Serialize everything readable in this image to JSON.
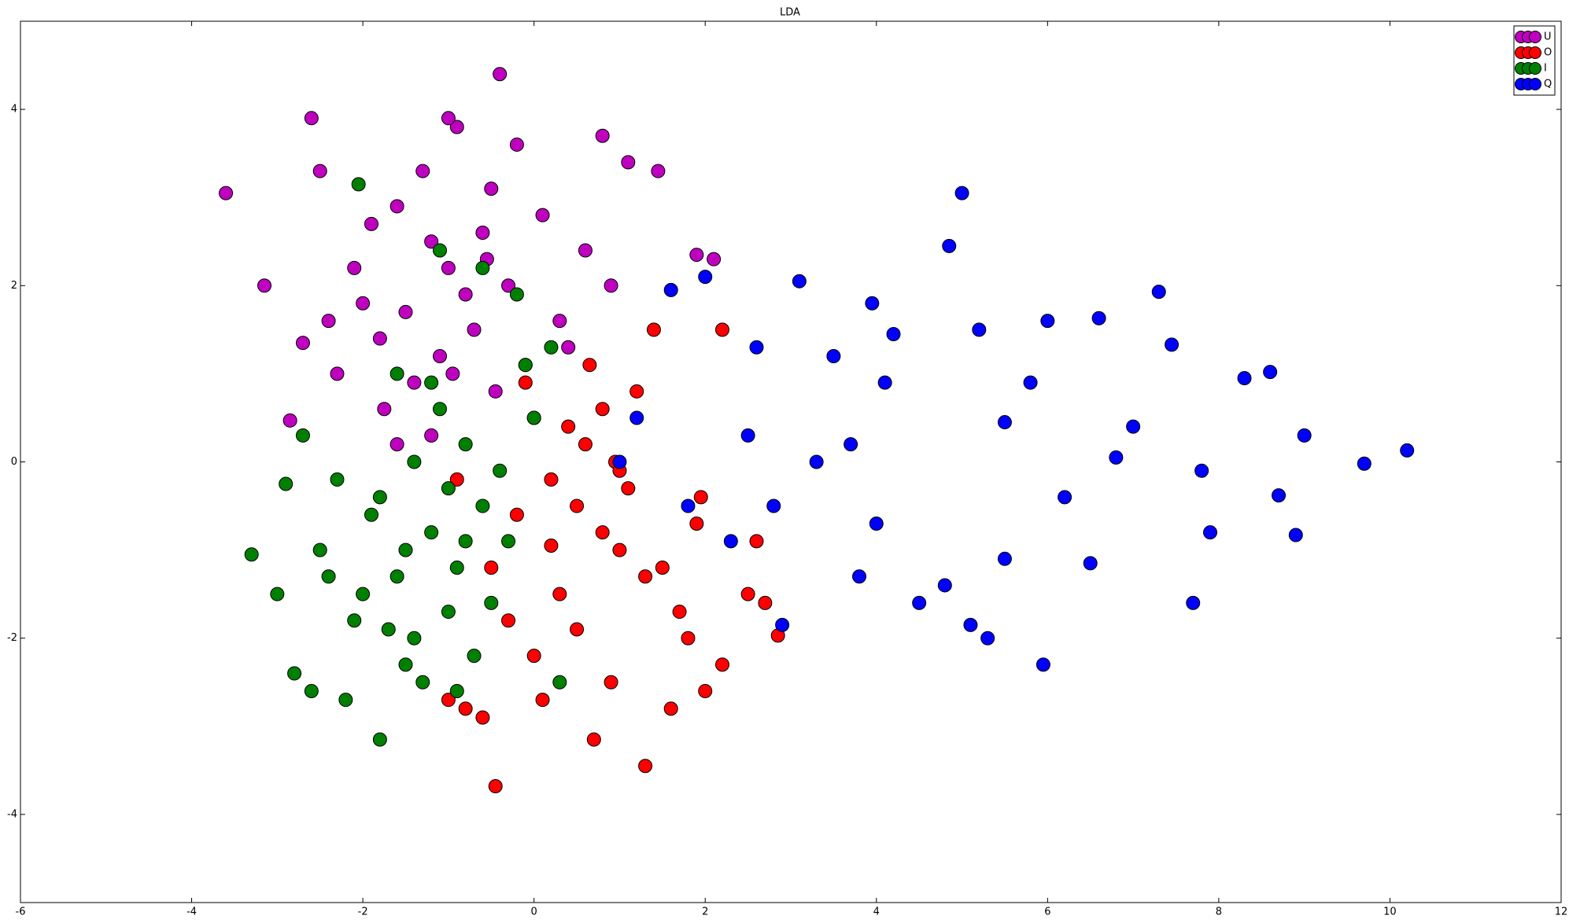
{
  "chart_data": {
    "type": "scatter",
    "title": "LDA",
    "xlim": [
      -6,
      12
    ],
    "ylim": [
      -5,
      5
    ],
    "xticks": [
      -6,
      -4,
      -2,
      0,
      2,
      4,
      6,
      8,
      10,
      12
    ],
    "yticks": [
      -4,
      -2,
      0,
      2,
      4
    ],
    "legend": "upper right",
    "series": [
      {
        "name": "U",
        "color": "#bf00bf",
        "x": [
          -3.6,
          -0.4,
          -2.6,
          -3.15,
          -2.85,
          2.1,
          -1.0,
          -0.8,
          -1.2,
          -1.5,
          -0.6,
          -0.3,
          -1.8,
          -2.1,
          -0.9,
          -1.3,
          -0.5,
          0.1,
          -1.6,
          -2.3,
          -1.1,
          -0.7,
          0.3,
          0.6,
          -0.2,
          -1.9,
          -1.4,
          -0.95,
          -2.5,
          -2.0,
          -0.1,
          0.8,
          1.1,
          1.45,
          -1.0,
          -0.55,
          -1.75,
          0.9,
          -2.4,
          -1.2,
          0.4,
          -0.45,
          -1.6,
          1.9,
          -2.7
        ],
        "values": [
          3.05,
          4.4,
          3.9,
          2.0,
          0.47,
          2.3,
          2.2,
          1.9,
          2.5,
          1.7,
          2.6,
          2.0,
          1.4,
          2.2,
          3.8,
          3.3,
          3.1,
          2.8,
          2.9,
          1.0,
          1.2,
          1.5,
          1.6,
          2.4,
          3.6,
          2.7,
          0.9,
          1.0,
          3.3,
          1.8,
          1.1,
          3.7,
          3.4,
          3.3,
          3.9,
          2.3,
          0.6,
          2.0,
          1.6,
          0.3,
          1.3,
          0.8,
          0.2,
          2.35,
          1.35
        ]
      },
      {
        "name": "O",
        "color": "#ff0000",
        "x": [
          -0.45,
          1.3,
          2.85,
          0.5,
          0.8,
          0.2,
          1.0,
          0.6,
          -0.2,
          0.0,
          1.5,
          1.8,
          2.2,
          0.3,
          0.9,
          1.2,
          -0.6,
          -0.8,
          0.1,
          0.7,
          1.6,
          2.5,
          1.9,
          0.4,
          -0.3,
          -0.5,
          1.1,
          0.65,
          1.4,
          2.0,
          2.6,
          0.2,
          -1.0,
          -0.9,
          0.95,
          1.7,
          2.2,
          0.5,
          -0.1,
          1.3,
          0.8,
          1.95,
          0.0,
          2.7,
          1.0
        ],
        "values": [
          -3.68,
          -3.45,
          -1.97,
          -0.5,
          -0.8,
          -0.2,
          -1.0,
          0.2,
          -0.6,
          0.5,
          -1.2,
          -2.0,
          -2.3,
          -1.5,
          -2.5,
          0.8,
          -2.9,
          -2.8,
          -2.7,
          -3.15,
          -2.8,
          -1.5,
          -0.7,
          0.4,
          -1.8,
          -1.2,
          -0.3,
          1.1,
          1.5,
          -2.6,
          -0.9,
          -0.95,
          -2.7,
          -0.2,
          0.0,
          -1.7,
          1.5,
          -1.9,
          0.9,
          -1.3,
          0.6,
          -0.4,
          -2.2,
          -1.6,
          -0.1
        ]
      },
      {
        "name": "I",
        "color": "#008000",
        "x": [
          -2.05,
          -1.8,
          -3.3,
          -1.5,
          -1.2,
          -0.9,
          -2.0,
          -2.5,
          -1.0,
          -0.6,
          -1.7,
          -2.8,
          -3.0,
          -2.3,
          -1.4,
          -0.3,
          -0.8,
          -1.1,
          -1.9,
          -2.6,
          -1.3,
          -0.5,
          0.0,
          0.2,
          -0.2,
          -1.6,
          -2.2,
          -0.7,
          -1.0,
          -2.7,
          -1.5,
          -0.4,
          -2.4,
          -1.2,
          -0.9,
          -1.8,
          -2.1,
          -0.1,
          -1.1,
          -0.6,
          -2.9,
          -1.4,
          -0.8,
          -1.6,
          0.3
        ],
        "values": [
          3.15,
          -3.15,
          -1.05,
          -1.0,
          -0.8,
          -1.2,
          -1.5,
          -1.0,
          -0.3,
          -0.5,
          -1.9,
          -2.4,
          -1.5,
          -0.2,
          -2.0,
          -0.9,
          0.2,
          0.6,
          -0.6,
          -2.6,
          -2.5,
          -1.6,
          0.5,
          1.3,
          1.9,
          1.0,
          -2.7,
          -2.2,
          -1.7,
          0.3,
          -2.3,
          -0.1,
          -1.3,
          0.9,
          -2.6,
          -0.4,
          -1.8,
          1.1,
          2.4,
          2.2,
          -0.25,
          0.0,
          -0.9,
          -1.3,
          -2.5
        ]
      },
      {
        "name": "Q",
        "color": "#0000ff",
        "x": [
          10.2,
          9.7,
          5.0,
          5.95,
          4.85,
          7.3,
          3.1,
          3.95,
          8.6,
          9.0,
          8.9,
          7.45,
          6.6,
          5.2,
          4.2,
          3.5,
          2.6,
          2.0,
          1.6,
          1.2,
          2.8,
          4.0,
          5.5,
          6.2,
          7.0,
          7.8,
          8.3,
          3.3,
          4.5,
          5.8,
          6.8,
          7.7,
          5.3,
          4.8,
          3.8,
          2.3,
          1.8,
          2.5,
          3.7,
          6.5,
          5.5,
          4.1,
          8.7,
          7.9,
          2.9,
          6.0,
          1.0,
          5.1
        ],
        "values": [
          0.13,
          -0.02,
          3.05,
          -2.3,
          2.45,
          1.93,
          2.05,
          1.8,
          1.02,
          0.3,
          -0.83,
          1.33,
          1.63,
          1.5,
          1.45,
          1.2,
          1.3,
          2.1,
          1.95,
          0.5,
          -0.5,
          -0.7,
          -1.1,
          -0.4,
          0.4,
          -0.1,
          0.95,
          0.0,
          -1.6,
          0.9,
          0.05,
          -1.6,
          -2.0,
          -1.4,
          -1.3,
          -0.9,
          -0.5,
          0.3,
          0.2,
          -1.15,
          0.45,
          0.9,
          -0.38,
          -0.8,
          -1.85,
          1.6,
          0.0,
          -1.85
        ]
      }
    ]
  }
}
